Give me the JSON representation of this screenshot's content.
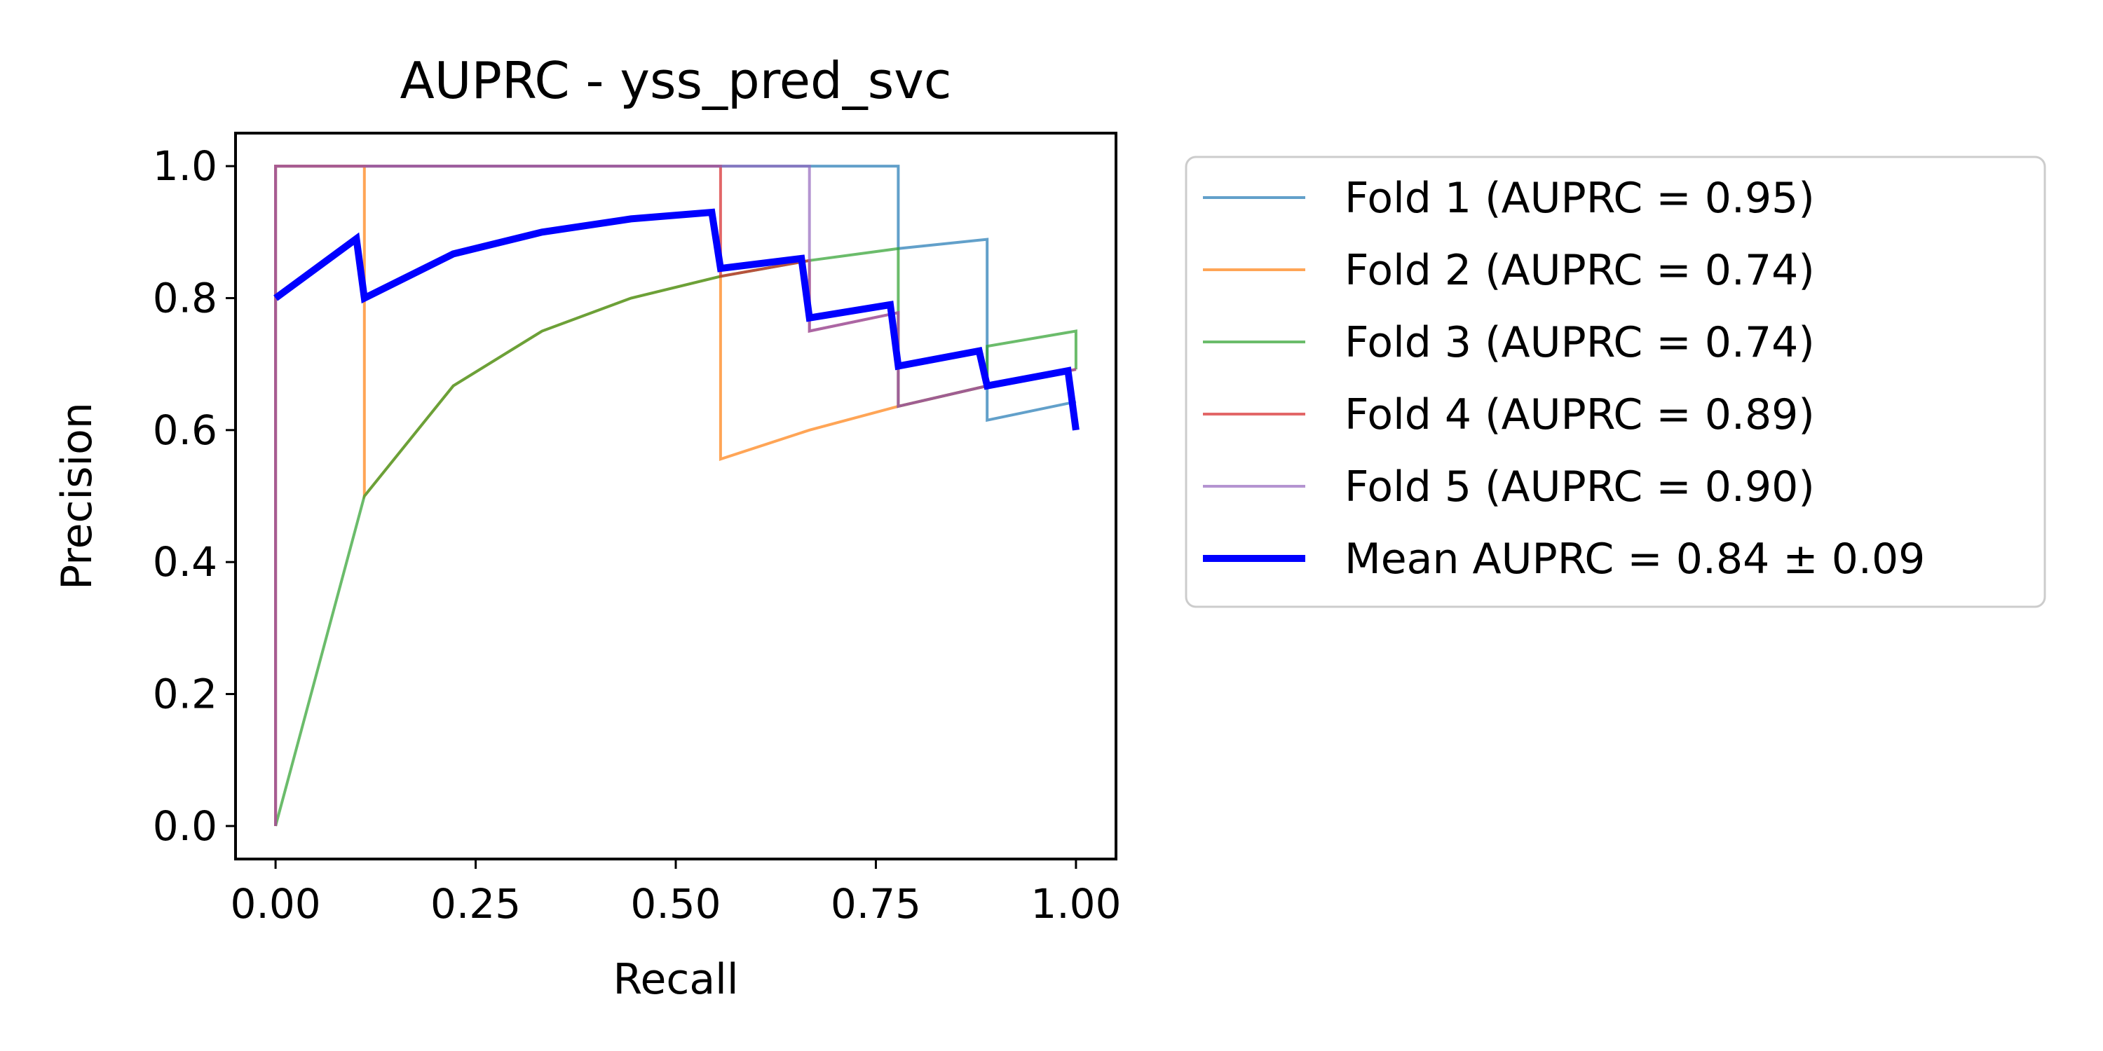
{
  "chart_data": {
    "type": "line",
    "title": "AUPRC - yss_pred_svc",
    "xlabel": "Recall",
    "ylabel": "Precision",
    "xlim": [
      -0.05,
      1.05
    ],
    "ylim": [
      -0.05,
      1.05
    ],
    "xticks": [
      0.0,
      0.25,
      0.5,
      0.75,
      1.0
    ],
    "xtick_labels": [
      "0.00",
      "0.25",
      "0.50",
      "0.75",
      "1.00"
    ],
    "yticks": [
      0.0,
      0.2,
      0.4,
      0.6,
      0.8,
      1.0
    ],
    "ytick_labels": [
      "0.0",
      "0.2",
      "0.4",
      "0.6",
      "0.8",
      "1.0"
    ],
    "grid": false,
    "legend_position": "outside-right",
    "series": [
      {
        "name": "Fold 1 (AUPRC = 0.95)",
        "color": "#1f77b4",
        "x": [
          0,
          0,
          0.111,
          0.222,
          0.333,
          0.444,
          0.556,
          0.667,
          0.778,
          0.778,
          0.889,
          0.889,
          1.0
        ],
        "y": [
          0,
          1.0,
          1.0,
          1.0,
          1.0,
          1.0,
          1.0,
          1.0,
          1.0,
          0.875,
          0.889,
          0.615,
          0.643
        ]
      },
      {
        "name": "Fold 2 (AUPRC = 0.74)",
        "color": "#ff7f0e",
        "x": [
          0,
          0,
          0.111,
          0.111,
          0.222,
          0.333,
          0.444,
          0.556,
          0.556,
          0.667,
          0.778,
          0.889,
          1.0
        ],
        "y": [
          0,
          1.0,
          1.0,
          0.5,
          0.667,
          0.75,
          0.8,
          0.833,
          0.556,
          0.6,
          0.636,
          0.667,
          0.692
        ]
      },
      {
        "name": "Fold 3 (AUPRC = 0.74)",
        "color": "#2ca02c",
        "x": [
          0,
          0.111,
          0.222,
          0.333,
          0.444,
          0.556,
          0.667,
          0.778,
          0.778,
          0.889,
          0.889,
          1.0,
          1.0
        ],
        "y": [
          0,
          0.5,
          0.667,
          0.75,
          0.8,
          0.833,
          0.857,
          0.875,
          0.636,
          0.667,
          0.727,
          0.75,
          0.692
        ]
      },
      {
        "name": "Fold 4 (AUPRC = 0.89)",
        "color": "#d62728",
        "x": [
          0,
          0,
          0.111,
          0.222,
          0.333,
          0.444,
          0.556,
          0.556,
          0.667,
          0.667,
          0.778,
          0.778,
          0.889,
          1.0
        ],
        "y": [
          0,
          1.0,
          1.0,
          1.0,
          1.0,
          1.0,
          1.0,
          0.833,
          0.857,
          0.75,
          0.778,
          0.636,
          0.667,
          0.692
        ]
      },
      {
        "name": "Fold 5 (AUPRC = 0.90)",
        "color": "#9467bd",
        "x": [
          0,
          0,
          0.111,
          0.222,
          0.333,
          0.444,
          0.556,
          0.667,
          0.667,
          0.778,
          0.778,
          0.889,
          1.0
        ],
        "y": [
          0,
          1.0,
          1.0,
          1.0,
          1.0,
          1.0,
          1.0,
          1.0,
          0.75,
          0.778,
          0.636,
          0.667,
          0.692
        ]
      },
      {
        "name": "Mean AUPRC = 0.84 ± 0.09",
        "color": "#0000ff",
        "x": [
          0.0,
          0.101,
          0.111,
          0.222,
          0.333,
          0.444,
          0.545,
          0.556,
          0.657,
          0.667,
          0.768,
          0.778,
          0.879,
          0.889,
          0.99,
          1.0
        ],
        "y": [
          0.8,
          0.89,
          0.8,
          0.867,
          0.9,
          0.92,
          0.93,
          0.845,
          0.86,
          0.77,
          0.79,
          0.697,
          0.72,
          0.667,
          0.69,
          0.6
        ]
      }
    ]
  }
}
